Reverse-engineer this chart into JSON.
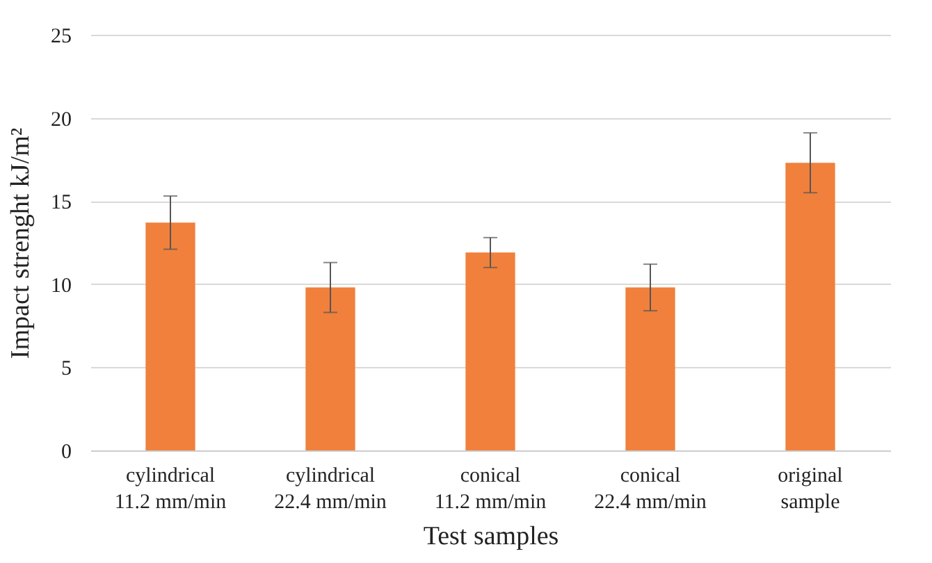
{
  "chart_data": {
    "type": "bar",
    "xlabel": "Test samples",
    "ylabel": "Impact strenght kJ/m²",
    "categories": [
      "cylindrical\n11.2 mm/min",
      "cylindrical\n22.4 mm/min",
      "conical\n11.2 mm/min",
      "conical\n22.4 mm/min",
      "original\nsample"
    ],
    "values": [
      13.7,
      9.8,
      11.9,
      9.8,
      17.3
    ],
    "color": "#f0803c",
    "errors": [
      1.6,
      1.5,
      0.9,
      1.4,
      1.8
    ],
    "ylim": [
      0,
      25
    ],
    "yticks": [
      0,
      5,
      10,
      15,
      20,
      25
    ],
    "grid": "y"
  }
}
